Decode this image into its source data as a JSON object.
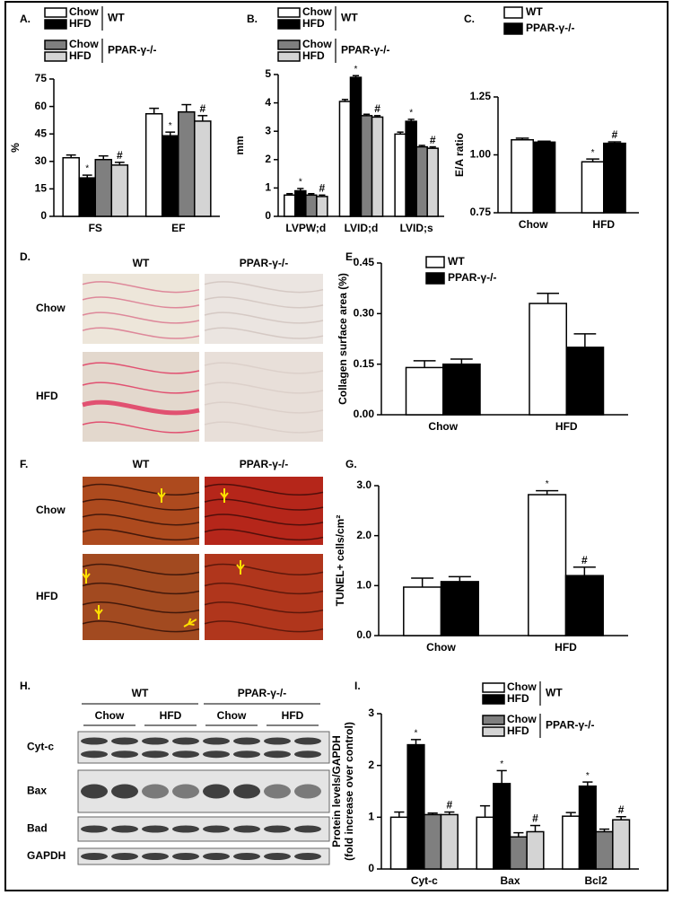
{
  "chart_data": [
    {
      "type": "bar",
      "panel_label": "A.",
      "ylabel": "%",
      "categories": [
        "FS",
        "EF"
      ],
      "ylim": [
        0,
        75
      ],
      "yticks": [
        0,
        15,
        30,
        45,
        60,
        75
      ],
      "series": [
        {
          "name": "Chow",
          "group": "WT",
          "color": "#ffffff",
          "values": [
            32,
            56
          ],
          "errors": [
            1.5,
            3
          ]
        },
        {
          "name": "HFD",
          "group": "WT",
          "color": "#000000",
          "values": [
            21,
            44
          ],
          "errors": [
            1.5,
            2
          ],
          "annotations": [
            "*",
            "*"
          ]
        },
        {
          "name": "Chow",
          "group": "PPAR-γ-/-",
          "color": "#7f7f7f",
          "values": [
            31,
            57
          ],
          "errors": [
            2,
            4
          ]
        },
        {
          "name": "HFD",
          "group": "PPAR-γ-/-",
          "color": "#d4d4d4",
          "values": [
            28,
            52
          ],
          "errors": [
            1.5,
            3
          ],
          "annotations": [
            "#",
            "#"
          ]
        }
      ]
    },
    {
      "type": "bar",
      "panel_label": "B.",
      "ylabel": "mm",
      "categories": [
        "LVPW;d",
        "LVID;d",
        "LVID;s"
      ],
      "ylim": [
        0,
        5
      ],
      "yticks": [
        0,
        1,
        2,
        3,
        4,
        5
      ],
      "series": [
        {
          "name": "Chow",
          "group": "WT",
          "color": "#ffffff",
          "values": [
            0.75,
            4.05,
            2.9
          ],
          "errors": [
            0.05,
            0.07,
            0.07
          ]
        },
        {
          "name": "HFD",
          "group": "WT",
          "color": "#000000",
          "values": [
            0.9,
            4.9,
            3.35
          ],
          "errors": [
            0.08,
            0.06,
            0.07
          ],
          "annotations": [
            "*",
            "*",
            "*"
          ]
        },
        {
          "name": "Chow",
          "group": "PPAR-γ-/-",
          "color": "#7f7f7f",
          "values": [
            0.75,
            3.55,
            2.45
          ],
          "errors": [
            0.05,
            0.05,
            0.05
          ]
        },
        {
          "name": "HFD",
          "group": "PPAR-γ-/-",
          "color": "#d4d4d4",
          "values": [
            0.7,
            3.5,
            2.4
          ],
          "errors": [
            0.05,
            0.05,
            0.05
          ],
          "annotations": [
            "#",
            "#",
            "#"
          ]
        }
      ]
    },
    {
      "type": "bar",
      "panel_label": "C.",
      "ylabel": "E/A ratio",
      "categories": [
        "Chow",
        "HFD"
      ],
      "ylim": [
        0.75,
        1.25
      ],
      "yticks": [
        0.75,
        {
          "value": 1.0,
          "label": "1.00"
        },
        1.25
      ],
      "series": [
        {
          "name": "WT",
          "color": "#ffffff",
          "values": [
            1.065,
            0.97
          ],
          "errors": [
            0.007,
            0.012
          ],
          "annotations": [
            null,
            "*"
          ]
        },
        {
          "name": "PPAR-γ-/-",
          "color": "#000000",
          "values": [
            1.055,
            1.05
          ],
          "errors": [
            0.004,
            0.006
          ],
          "annotations": [
            null,
            "#"
          ]
        }
      ]
    },
    {
      "type": "bar",
      "panel_label": "E.",
      "ylabel": "Collagen surface area (%)",
      "categories": [
        "Chow",
        "HFD"
      ],
      "ylim": [
        0,
        0.45
      ],
      "yticks": [
        {
          "value": 0,
          "label": "0.00"
        },
        0.15,
        {
          "value": 0.3,
          "label": "0.30"
        },
        0.45
      ],
      "series": [
        {
          "name": "WT",
          "color": "#ffffff",
          "values": [
            0.14,
            0.33
          ],
          "errors": [
            0.02,
            0.03
          ]
        },
        {
          "name": "PPAR-γ-/-",
          "color": "#000000",
          "values": [
            0.15,
            0.2
          ],
          "errors": [
            0.015,
            0.04
          ]
        }
      ]
    },
    {
      "type": "bar",
      "panel_label": "G.",
      "ylabel": "TUNEL+ cells/cm²",
      "categories": [
        "Chow",
        "HFD"
      ],
      "ylim": [
        0,
        3
      ],
      "yticks": [
        {
          "value": 0,
          "label": "0.0"
        },
        {
          "value": 1,
          "label": "1.0"
        },
        {
          "value": 2,
          "label": "2.0"
        },
        {
          "value": 3,
          "label": "3.0"
        }
      ],
      "series": [
        {
          "name": "WT",
          "color": "#ffffff",
          "values": [
            0.97,
            2.82
          ],
          "errors": [
            0.18,
            0.08
          ],
          "annotations": [
            null,
            "*"
          ]
        },
        {
          "name": "PPAR-γ-/-",
          "color": "#000000",
          "values": [
            1.08,
            1.2
          ],
          "errors": [
            0.1,
            0.17
          ],
          "annotations": [
            null,
            "#"
          ]
        }
      ]
    },
    {
      "type": "bar",
      "panel_label": "I.",
      "ylabel": [
        "Protein levels/GAPDH",
        "(fold increase over control)"
      ],
      "categories": [
        "Cyt-c",
        "Bax",
        "Bcl2"
      ],
      "ylim": [
        0,
        3
      ],
      "yticks": [
        0,
        1,
        2,
        3
      ],
      "series": [
        {
          "name": "Chow",
          "group": "WT",
          "color": "#ffffff",
          "values": [
            1.0,
            1.0,
            1.02
          ],
          "errors": [
            0.1,
            0.22,
            0.07
          ]
        },
        {
          "name": "HFD",
          "group": "WT",
          "color": "#000000",
          "values": [
            2.4,
            1.65,
            1.6
          ],
          "errors": [
            0.1,
            0.25,
            0.08
          ],
          "annotations": [
            "*",
            "*",
            "*"
          ]
        },
        {
          "name": "Chow",
          "group": "PPAR-γ-/-",
          "color": "#7f7f7f",
          "values": [
            1.05,
            0.62,
            0.72
          ],
          "errors": [
            0.03,
            0.08,
            0.05
          ]
        },
        {
          "name": "HFD",
          "group": "PPAR-γ-/-",
          "color": "#d4d4d4",
          "values": [
            1.05,
            0.72,
            0.95
          ],
          "errors": [
            0.05,
            0.12,
            0.06
          ],
          "annotations": [
            "#",
            "#",
            "#"
          ]
        }
      ]
    }
  ],
  "image_panels": [
    {
      "label": "D.",
      "columns": [
        "WT",
        "PPAR-γ-/-"
      ],
      "rows": [
        "Chow",
        "HFD"
      ]
    },
    {
      "label": "F.",
      "columns": [
        "WT",
        "PPAR-γ-/-"
      ],
      "rows": [
        "Chow",
        "HFD"
      ]
    }
  ],
  "blot": {
    "label": "H.",
    "groups": [
      "WT",
      "PPAR-γ-/-"
    ],
    "conditions": [
      "Chow",
      "HFD",
      "Chow",
      "HFD"
    ],
    "rows": [
      "Cyt-c",
      "Bax",
      "Bad",
      "GAPDH"
    ]
  }
}
